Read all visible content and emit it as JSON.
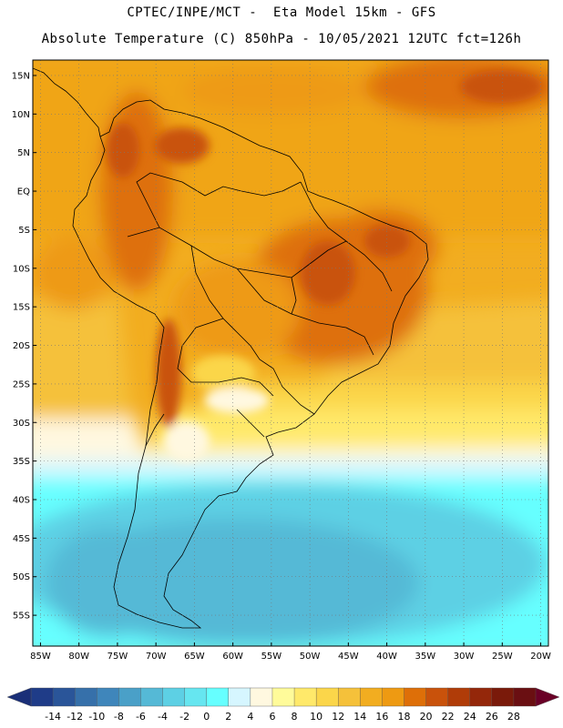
{
  "header": {
    "line1": "CPTEC/INPE/MCT -  Eta Model 15km - GFS",
    "line2": "Absolute Temperature (C) 850hPa - 10/05/2021 12UTC fct=126h"
  },
  "map": {
    "lon_range": [
      -86,
      -19
    ],
    "lat_range": [
      -59,
      17
    ],
    "x_ticks": [
      {
        "lon": -85,
        "label": "85W"
      },
      {
        "lon": -80,
        "label": "80W"
      },
      {
        "lon": -75,
        "label": "75W"
      },
      {
        "lon": -70,
        "label": "70W"
      },
      {
        "lon": -65,
        "label": "65W"
      },
      {
        "lon": -60,
        "label": "60W"
      },
      {
        "lon": -55,
        "label": "55W"
      },
      {
        "lon": -50,
        "label": "50W"
      },
      {
        "lon": -45,
        "label": "45W"
      },
      {
        "lon": -40,
        "label": "40W"
      },
      {
        "lon": -35,
        "label": "35W"
      },
      {
        "lon": -30,
        "label": "30W"
      },
      {
        "lon": -25,
        "label": "25W"
      },
      {
        "lon": -20,
        "label": "20W"
      }
    ],
    "y_ticks": [
      {
        "lat": 15,
        "label": "15N"
      },
      {
        "lat": 10,
        "label": "10N"
      },
      {
        "lat": 5,
        "label": "5N"
      },
      {
        "lat": 0,
        "label": "EQ"
      },
      {
        "lat": -5,
        "label": "5S"
      },
      {
        "lat": -10,
        "label": "10S"
      },
      {
        "lat": -15,
        "label": "15S"
      },
      {
        "lat": -20,
        "label": "20S"
      },
      {
        "lat": -25,
        "label": "25S"
      },
      {
        "lat": -30,
        "label": "30S"
      },
      {
        "lat": -35,
        "label": "35S"
      },
      {
        "lat": -40,
        "label": "40S"
      },
      {
        "lat": -45,
        "label": "45S"
      },
      {
        "lat": -50,
        "label": "50S"
      },
      {
        "lat": -55,
        "label": "55S"
      }
    ],
    "gridlines": "dotted"
  },
  "colorbar": {
    "colors": [
      "#1f3c88",
      "#2a5599",
      "#3670aa",
      "#3f86bb",
      "#4aa0c8",
      "#55b9d6",
      "#5dd0e4",
      "#66e6f0",
      "#66ffff",
      "#d6f6ff",
      "#fff8e0",
      "#fffb9a",
      "#ffe96a",
      "#fbd64a",
      "#f5c13a",
      "#f2ad20",
      "#ee9a12",
      "#de6f08",
      "#c9520b",
      "#b03c08",
      "#94270a",
      "#7a1a0a",
      "#6a0f12"
    ],
    "labels": [
      "-14",
      "-12",
      "-10",
      "-8",
      "-6",
      "-4",
      "-2",
      "0",
      "2",
      "4",
      "6",
      "8",
      "10",
      "12",
      "14",
      "16",
      "18",
      "20",
      "22",
      "24",
      "26",
      "28"
    ]
  }
}
